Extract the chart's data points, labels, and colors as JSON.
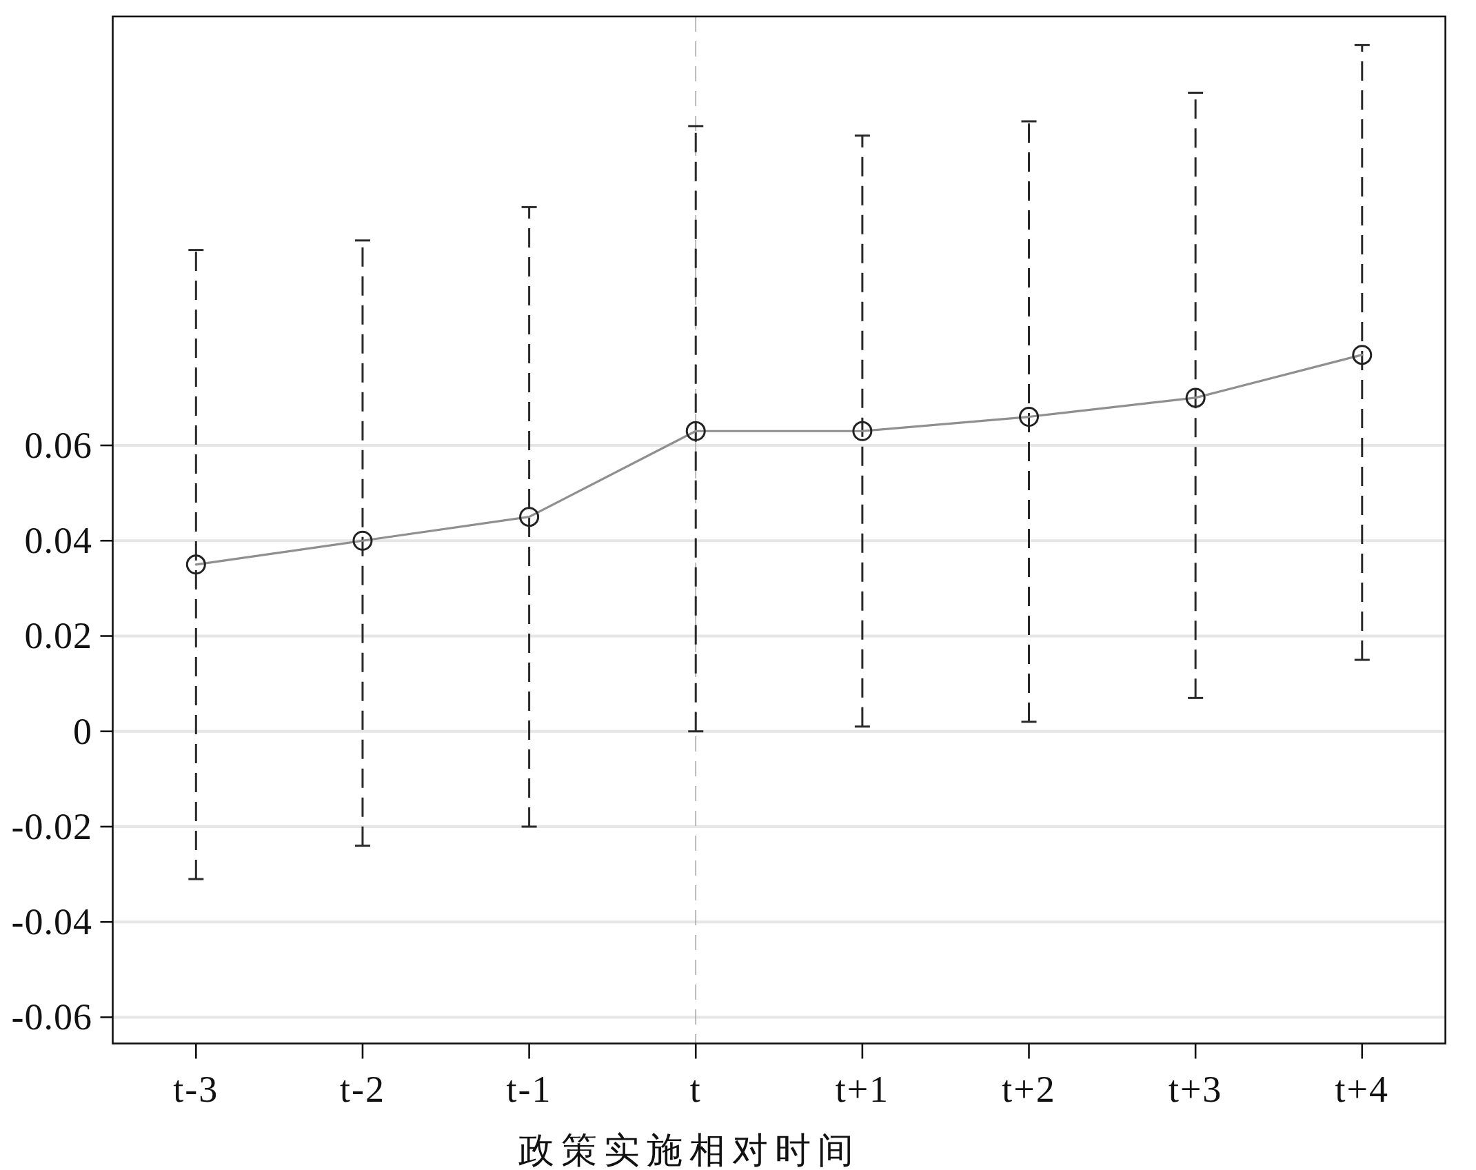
{
  "chart_data": {
    "type": "line",
    "xlabel": "政策实施相对时间",
    "categories": [
      "t-3",
      "t-2",
      "t-1",
      "t",
      "t+1",
      "t+2",
      "t+3",
      "t+4"
    ],
    "series": [
      {
        "color": "#8f8f8f",
        "values": [
          0.035,
          0.04,
          0.045,
          0.063,
          0.063,
          0.066,
          0.07,
          0.079
        ],
        "errors": [
          [
            -0.031,
            0.101
          ],
          [
            -0.024,
            0.103
          ],
          [
            -0.02,
            0.11
          ],
          [
            0.0,
            0.127
          ],
          [
            0.001,
            0.125
          ],
          [
            0.002,
            0.128
          ],
          [
            0.007,
            0.134
          ],
          [
            0.015,
            0.144
          ]
        ]
      }
    ],
    "ylim": [
      -0.0655,
      0.15
    ],
    "yticks": [
      -0.06,
      -0.04,
      -0.02,
      0,
      0.02,
      0.04,
      0.06
    ],
    "grid": "y",
    "marker": "circle",
    "ref_lines": [
      {
        "axis": "x",
        "value": "t",
        "color": "#a0a0a0",
        "line_style": "dashed"
      }
    ]
  }
}
